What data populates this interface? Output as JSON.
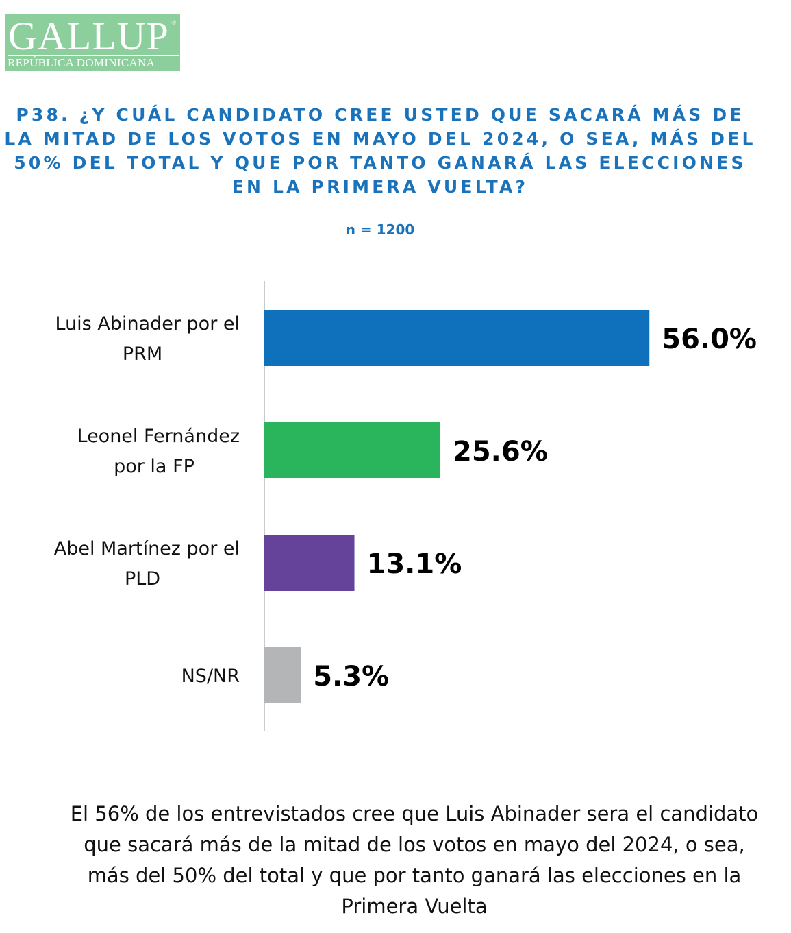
{
  "logo": {
    "name": "GALLUP",
    "registered": "®",
    "subtitle": "REPÚBLICA DOMINICANA"
  },
  "chart_data": {
    "type": "bar",
    "orientation": "horizontal",
    "title": "P38. ¿Y CUÁL CANDIDATO CREE USTED QUE SACARÁ MÁS DE LA MITAD DE LOS VOTOS EN MAYO DEL 2024, O SEA, MÁS DEL 50% DEL TOTAL Y QUE POR TANTO GANARÁ LAS ELECCIONES EN LA PRIMERA VUELTA?",
    "subtitle": "n = 1200",
    "categories": [
      [
        "Luis Abinader por el",
        "PRM"
      ],
      [
        "Leonel Fernández",
        "por la FP"
      ],
      [
        "Abel Martínez por el",
        "PLD"
      ],
      [
        "NS/NR"
      ]
    ],
    "values": [
      56.0,
      25.6,
      13.1,
      5.3
    ],
    "labels": [
      "56.0%",
      "25.6%",
      "13.1%",
      "5.3%"
    ],
    "colors": [
      "#0f70bb",
      "#2ab55c",
      "#65439a",
      "#b3b5b6"
    ],
    "grid": false
  },
  "note": "El 56% de los entrevistados cree que Luis Abinader sera el candidato que sacará más de la mitad de los votos en mayo del 2024, o sea, más del 50% del total y que por tanto ganará las elecciones en la Primera Vuelta"
}
